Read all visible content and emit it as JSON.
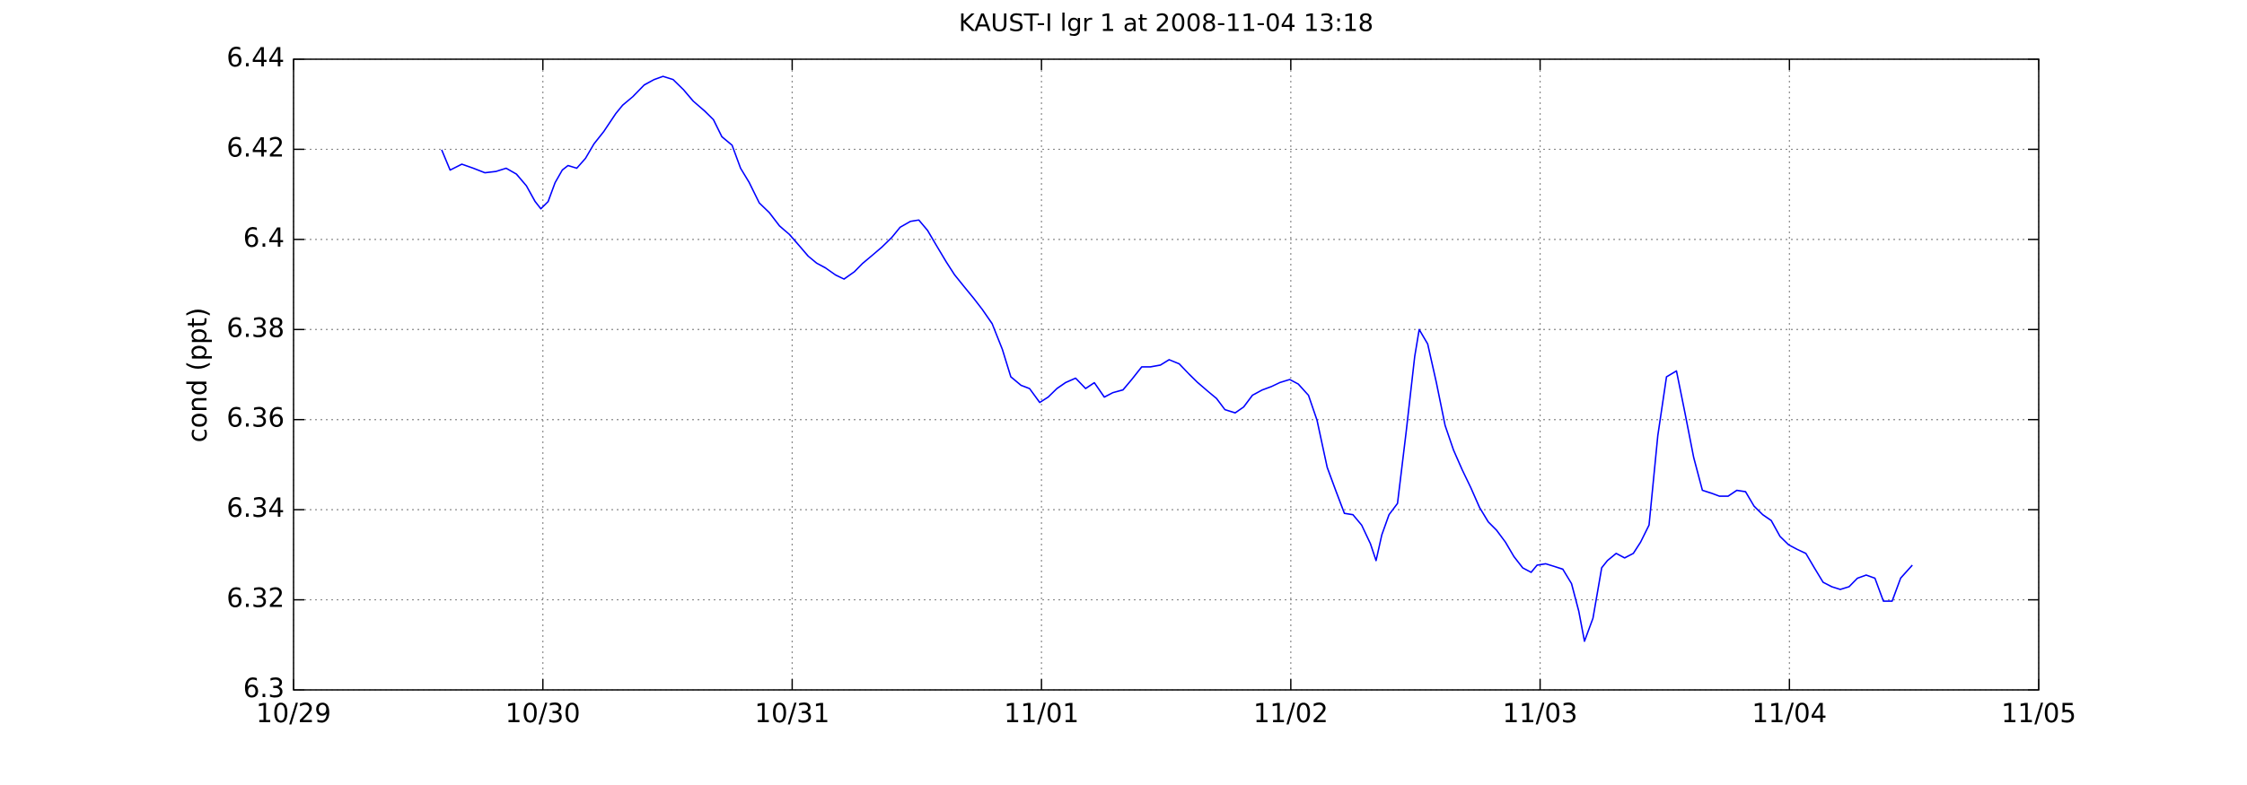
{
  "chart_data": {
    "type": "line",
    "title": "KAUST-I lgr 1 at 2008-11-04 13:18",
    "y_label": "cond (ppt)",
    "xlim": [
      0,
      7
    ],
    "xticks": [
      {
        "value": 0,
        "label": "10/29"
      },
      {
        "value": 1,
        "label": "10/30"
      },
      {
        "value": 2,
        "label": "10/31"
      },
      {
        "value": 3,
        "label": "11/01"
      },
      {
        "value": 4,
        "label": "11/02"
      },
      {
        "value": 5,
        "label": "11/03"
      },
      {
        "value": 6,
        "label": "11/04"
      },
      {
        "value": 7,
        "label": "11/05"
      }
    ],
    "ylim": [
      6.3,
      6.44
    ],
    "yticks": [
      6.3,
      6.32,
      6.34,
      6.36,
      6.38,
      6.4,
      6.42,
      6.44
    ],
    "grid": true,
    "x": [
      0.594,
      0.628,
      0.675,
      0.721,
      0.767,
      0.813,
      0.853,
      0.894,
      0.934,
      0.969,
      0.992,
      1.021,
      1.049,
      1.078,
      1.101,
      1.136,
      1.171,
      1.205,
      1.245,
      1.292,
      1.32,
      1.361,
      1.407,
      1.447,
      1.482,
      1.522,
      1.563,
      1.603,
      1.649,
      1.684,
      1.718,
      1.759,
      1.793,
      1.828,
      1.868,
      1.909,
      1.949,
      1.989,
      2.03,
      2.064,
      2.099,
      2.133,
      2.174,
      2.208,
      2.249,
      2.283,
      2.324,
      2.358,
      2.399,
      2.433,
      2.474,
      2.508,
      2.543,
      2.577,
      2.618,
      2.652,
      2.693,
      2.727,
      2.762,
      2.802,
      2.843,
      2.877,
      2.918,
      2.952,
      2.993,
      3.027,
      3.062,
      3.096,
      3.137,
      3.177,
      3.212,
      3.252,
      3.287,
      3.327,
      3.362,
      3.402,
      3.437,
      3.477,
      3.512,
      3.552,
      3.592,
      3.627,
      3.667,
      3.702,
      3.736,
      3.777,
      3.811,
      3.846,
      3.886,
      3.921,
      3.955,
      3.996,
      4.03,
      4.071,
      4.105,
      4.146,
      4.18,
      4.215,
      4.249,
      4.284,
      4.319,
      4.342,
      4.365,
      4.394,
      4.428,
      4.463,
      4.497,
      4.515,
      4.549,
      4.584,
      4.619,
      4.653,
      4.688,
      4.722,
      4.757,
      4.792,
      4.826,
      4.861,
      4.895,
      4.93,
      4.964,
      4.988,
      5.022,
      5.057,
      5.091,
      5.126,
      5.155,
      5.178,
      5.212,
      5.247,
      5.27,
      5.305,
      5.339,
      5.374,
      5.403,
      5.437,
      5.472,
      5.507,
      5.547,
      5.581,
      5.616,
      5.651,
      5.685,
      5.72,
      5.754,
      5.789,
      5.824,
      5.858,
      5.893,
      5.927,
      5.962,
      5.997,
      6.031,
      6.066,
      6.1,
      6.135,
      6.17,
      6.204,
      6.239,
      6.273,
      6.308,
      6.343,
      6.377,
      6.412,
      6.446,
      6.493
    ],
    "series": [
      {
        "color": "#0000ff",
        "values": [
          6.4199,
          6.4154,
          6.4167,
          6.4158,
          6.4148,
          6.4151,
          6.4158,
          6.4145,
          6.4119,
          6.4084,
          6.4068,
          6.4084,
          6.4126,
          6.4154,
          6.4164,
          6.4158,
          6.418,
          6.4212,
          6.424,
          6.4279,
          6.4298,
          6.4317,
          6.4343,
          6.4355,
          6.4362,
          6.4355,
          6.4333,
          6.4307,
          6.4285,
          6.4266,
          6.4228,
          6.4209,
          6.4158,
          6.4126,
          6.4081,
          6.4059,
          6.403,
          6.4011,
          6.3985,
          6.3963,
          6.3947,
          6.3937,
          6.3921,
          6.3912,
          6.3928,
          6.3947,
          6.3966,
          6.3982,
          6.4004,
          6.4027,
          6.404,
          6.4043,
          6.402,
          6.3988,
          6.395,
          6.3921,
          6.3893,
          6.387,
          6.3845,
          6.3813,
          6.3756,
          6.3695,
          6.3676,
          6.3669,
          6.3638,
          6.365,
          6.3669,
          6.3682,
          6.3692,
          6.3669,
          6.3682,
          6.365,
          6.366,
          6.3666,
          6.3689,
          6.3717,
          6.3717,
          6.3721,
          6.3733,
          6.3724,
          6.3701,
          6.3682,
          6.3663,
          6.3647,
          6.3622,
          6.3615,
          6.3628,
          6.3654,
          6.3666,
          6.3673,
          6.3682,
          6.3689,
          6.3679,
          6.3654,
          6.3599,
          6.3494,
          6.3443,
          6.3392,
          6.3389,
          6.3366,
          6.3325,
          6.3287,
          6.3344,
          6.3389,
          6.3414,
          6.3574,
          6.374,
          6.38,
          6.3768,
          6.3682,
          6.3587,
          6.3532,
          6.3488,
          6.3449,
          6.3405,
          6.3373,
          6.3354,
          6.3328,
          6.3296,
          6.3271,
          6.3261,
          6.3277,
          6.328,
          6.3274,
          6.3268,
          6.3236,
          6.3175,
          6.3108,
          6.3159,
          6.3271,
          6.3287,
          6.3303,
          6.3293,
          6.3303,
          6.3328,
          6.3366,
          6.3564,
          6.3695,
          6.3708,
          6.3615,
          6.3516,
          6.3443,
          6.3437,
          6.343,
          6.343,
          6.3443,
          6.344,
          6.3408,
          6.3389,
          6.3376,
          6.3341,
          6.3322,
          6.3312,
          6.3303,
          6.3271,
          6.3239,
          6.3229,
          6.3223,
          6.3229,
          6.3248,
          6.3255,
          6.3248,
          6.3197,
          6.3197,
          6.3248,
          6.3277
        ]
      }
    ]
  }
}
